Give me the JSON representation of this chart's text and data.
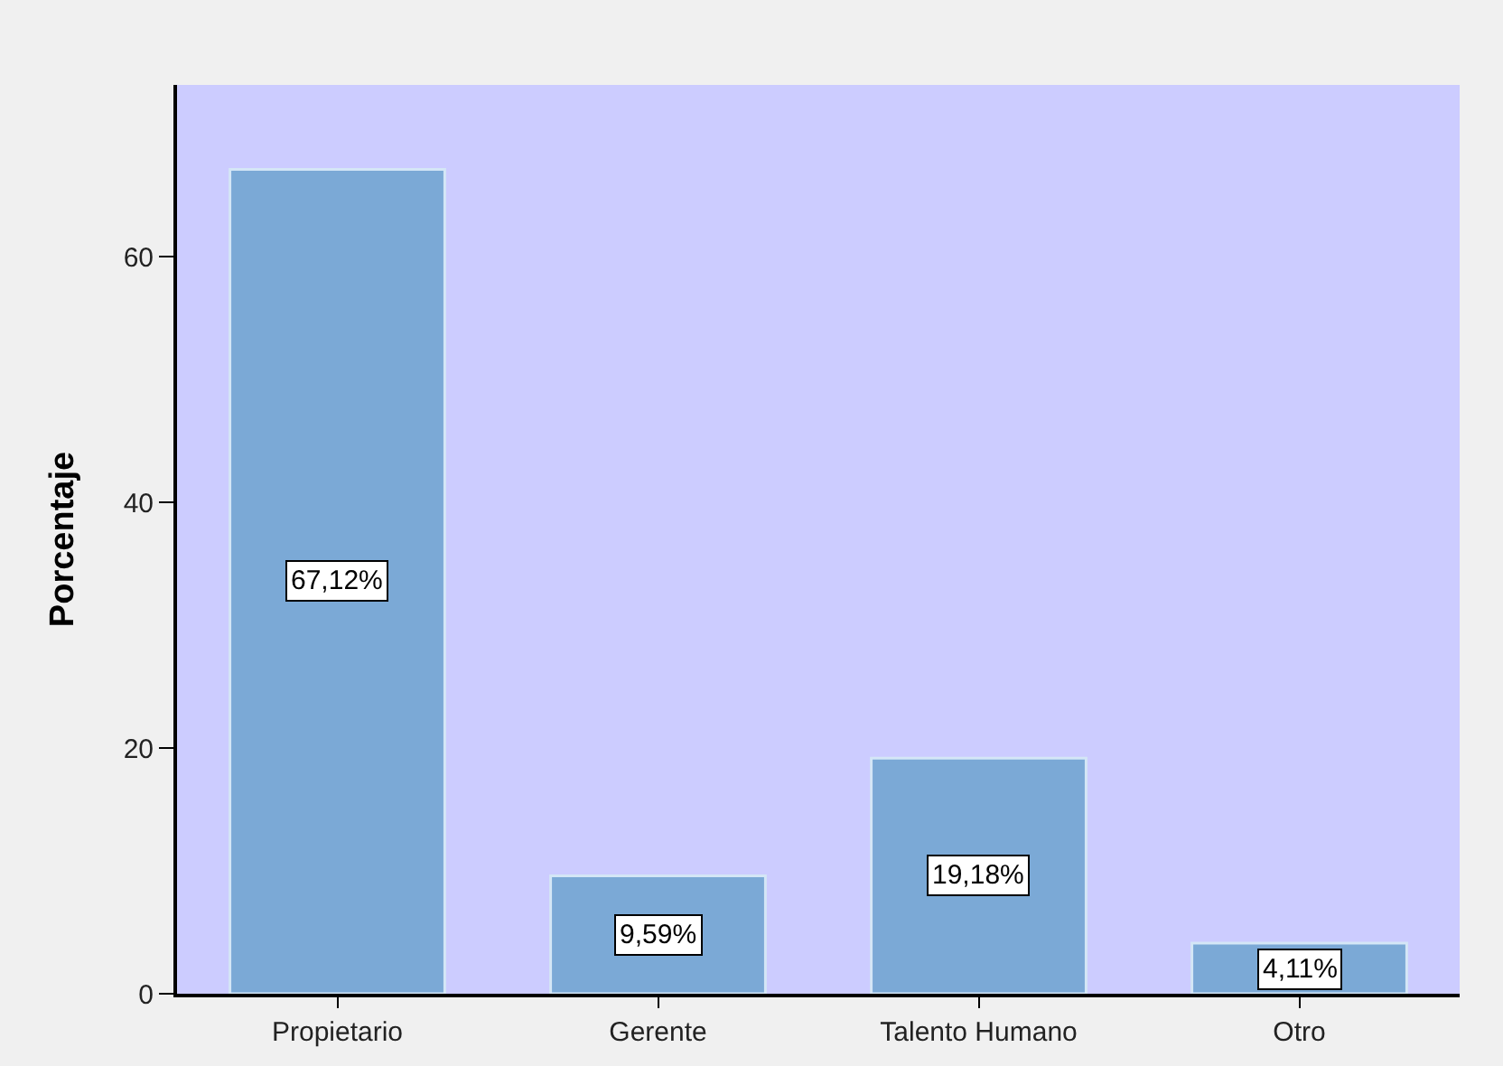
{
  "chart_data": {
    "type": "bar",
    "ylabel": "Porcentaje",
    "categories": [
      "Propietario",
      "Gerente",
      "Talento Humano",
      "Otro"
    ],
    "values": [
      67.12,
      9.59,
      19.18,
      4.11
    ],
    "value_labels": [
      "67,12%",
      "9,59%",
      "19,18%",
      "4,11%"
    ],
    "color": "#7ba9d6",
    "ylim": [
      0,
      74
    ],
    "yticks": [
      0,
      20,
      40,
      60
    ]
  }
}
